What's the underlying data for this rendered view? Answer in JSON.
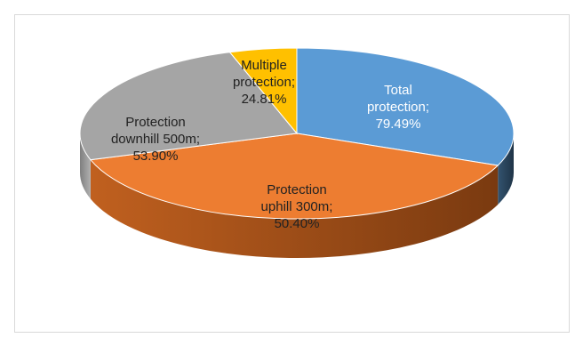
{
  "chart_data": {
    "type": "pie",
    "style": "3d",
    "title": "",
    "legend": "none",
    "slices": [
      {
        "label": [
          "Total",
          "protection;"
        ],
        "value_text": "79.49%",
        "value": 79.49,
        "color": "#5b9bd5",
        "side_color": "#2c4b66",
        "text": "light"
      },
      {
        "label": [
          "Protection",
          "uphill 300m;"
        ],
        "value_text": "50.40%",
        "value": 50.4,
        "color": "#ed7d31",
        "side_color": "#b35a1f",
        "text": "dark"
      },
      {
        "label": [
          "Protection",
          "downhill 500m;"
        ],
        "value_text": "53.90%",
        "value": 53.9,
        "color": "#a5a5a5",
        "side_color": "#8a8a8a",
        "text": "dark"
      },
      {
        "label": [
          "Multiple",
          "protection;"
        ],
        "value_text": "24.81%",
        "value": 24.81,
        "color": "#ffc000",
        "side_color": "#c79500",
        "text": "dark"
      }
    ]
  }
}
